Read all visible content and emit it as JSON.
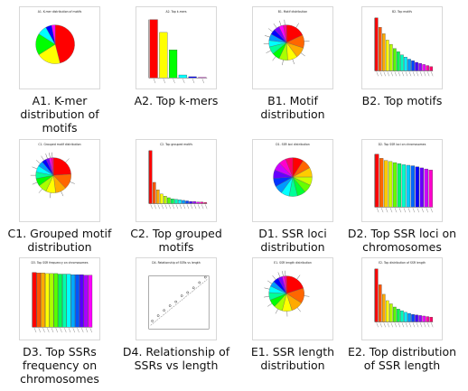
{
  "items": [
    {
      "label": "A1. K-mer distribution of motifs",
      "thumb_title": "A1. K-mer distribution of motifs",
      "kind": "pie_small",
      "colors": [
        "#ff0000",
        "#ffff00",
        "#00ff00",
        "#00ffff",
        "#0000ff",
        "#ff00ff"
      ],
      "values": [
        46,
        20,
        18,
        8,
        5,
        3
      ]
    },
    {
      "label": "A2. Top k-mers",
      "thumb_title": "A2. Top k-mers",
      "kind": "bar_decay",
      "colors": [
        "#ff0000",
        "#ffff00",
        "#00ff00",
        "#00ffff",
        "#0000ff",
        "#ff00ff"
      ],
      "values": [
        100,
        78,
        48,
        5,
        2,
        1
      ]
    },
    {
      "label": "B1. Motif distribution",
      "thumb_title": "B1. Motif distribution",
      "kind": "pie_many",
      "colors": [
        "#ff0000",
        "#ff6600",
        "#ffaa00",
        "#ffff00",
        "#aaff00",
        "#00ff00",
        "#00ff99",
        "#00ffff",
        "#0099ff",
        "#0000ff",
        "#7700ff",
        "#ff00ff",
        "#ff0099"
      ],
      "values": [
        18,
        12,
        10,
        9,
        8,
        7,
        7,
        6,
        6,
        5,
        5,
        4,
        3
      ]
    },
    {
      "label": "B2. Top motifs",
      "thumb_title": "B2. Top motifs",
      "kind": "bar_rainbow_decay",
      "colors": [
        "#ff0000",
        "#ff5500",
        "#ffaa00",
        "#ffff00",
        "#bbff00",
        "#55ff00",
        "#00ff55",
        "#00ffbb",
        "#00eeff",
        "#0099ff",
        "#0044ff",
        "#4400ff",
        "#9900ff",
        "#ee00ff",
        "#ff00aa",
        "#ff0066"
      ],
      "values": [
        100,
        82,
        70,
        58,
        50,
        42,
        36,
        30,
        26,
        22,
        19,
        16,
        14,
        12,
        10,
        8
      ]
    },
    {
      "label": "C1. Grouped motif distribution",
      "thumb_title": "C1. Grouped motif distribution",
      "kind": "pie_many",
      "colors": [
        "#ff0000",
        "#ff6600",
        "#ffaa00",
        "#ffff00",
        "#aaff00",
        "#00ff00",
        "#00ff99",
        "#00ffff",
        "#0099ff",
        "#0000ff",
        "#7700ff",
        "#ff00ff",
        "#ff0099"
      ],
      "values": [
        24,
        14,
        10,
        9,
        8,
        7,
        6,
        6,
        5,
        4,
        3,
        2,
        2
      ]
    },
    {
      "label": "C2. Top grouped motifs",
      "thumb_title": "C2. Top grouped motifs",
      "kind": "bar_rainbow_decay",
      "colors": [
        "#ff0000",
        "#ff5500",
        "#ffaa00",
        "#ffff00",
        "#bbff00",
        "#55ff00",
        "#00ff55",
        "#00ffbb",
        "#00eeff",
        "#0099ff",
        "#0044ff",
        "#4400ff",
        "#9900ff",
        "#ee00ff",
        "#ff00aa",
        "#ff0066"
      ],
      "values": [
        100,
        40,
        26,
        18,
        14,
        11,
        9,
        8,
        7,
        6,
        5,
        4,
        4,
        3,
        3,
        2
      ]
    },
    {
      "label": "D1. SSR loci distribution",
      "thumb_title": "D1. SSR loci distribution",
      "kind": "pie_rainbow",
      "colors": [
        "#ff0000",
        "#ff6600",
        "#ffcc00",
        "#ccff00",
        "#66ff00",
        "#00ff33",
        "#00ff99",
        "#00ffff",
        "#0099ff",
        "#0033ff",
        "#6600ff",
        "#cc00ff",
        "#ff00cc",
        "#ff0066"
      ],
      "values": [
        9,
        8,
        8,
        7,
        7,
        7,
        7,
        7,
        7,
        7,
        7,
        7,
        6,
        6
      ]
    },
    {
      "label": "D2. Top SSR loci on chromosomes",
      "thumb_title": "D2. Top SSR loci on chromosomes",
      "kind": "bar_rainbow_even",
      "colors": [
        "#ff0000",
        "#ff6600",
        "#ffcc00",
        "#ccff00",
        "#66ff00",
        "#00ff66",
        "#00ffcc",
        "#00ccff",
        "#0066ff",
        "#0000ff",
        "#6600ff",
        "#cc00ff",
        "#ff00cc"
      ],
      "values": [
        100,
        92,
        88,
        86,
        84,
        82,
        80,
        79,
        78,
        76,
        74,
        72,
        70
      ]
    },
    {
      "label": "D3. Top SSRs frequency on chromosomes",
      "thumb_title": "D3. Top SSR frequency on chromosomes",
      "kind": "bar_rainbow_full",
      "colors": [
        "#ff0000",
        "#ff5500",
        "#ffaa00",
        "#ffff00",
        "#aaff00",
        "#55ff00",
        "#00ff55",
        "#00ffaa",
        "#00ffff",
        "#00aaff",
        "#0055ff",
        "#5500ff",
        "#aa00ff",
        "#ff00ff"
      ],
      "values": [
        98,
        97,
        97,
        96,
        96,
        96,
        95,
        95,
        95,
        94,
        94,
        94,
        93,
        93
      ]
    },
    {
      "label": "D4. Relationship of SSRs vs length",
      "thumb_title": "D4. Relationship of SSRs vs length",
      "kind": "scatter",
      "colors": [
        "#333333",
        "#999999"
      ],
      "values": [
        12,
        20,
        28,
        35,
        41,
        50,
        55,
        62,
        70,
        78
      ]
    },
    {
      "label": "E1. SSR length distribution",
      "thumb_title": "E1. SSR length distribution",
      "kind": "pie_many",
      "colors": [
        "#ff0000",
        "#ff6600",
        "#ffaa00",
        "#ffff00",
        "#aaff00",
        "#00ff00",
        "#00ff99",
        "#00ffff",
        "#0099ff",
        "#0000ff",
        "#7700ff",
        "#ff00ff",
        "#ff0099"
      ],
      "values": [
        20,
        14,
        11,
        9,
        8,
        7,
        7,
        6,
        5,
        5,
        4,
        2,
        2
      ]
    },
    {
      "label": "E2. Top distribution of SSR length",
      "thumb_title": "E2. Top distribution of SSR length",
      "kind": "bar_rainbow_decay",
      "colors": [
        "#ff0000",
        "#ff5500",
        "#ffaa00",
        "#ffff00",
        "#bbff00",
        "#55ff00",
        "#00ff55",
        "#00ffbb",
        "#00eeff",
        "#0099ff",
        "#0044ff",
        "#4400ff",
        "#9900ff",
        "#ee00ff",
        "#ff00aa",
        "#ff0066"
      ],
      "values": [
        100,
        70,
        52,
        40,
        34,
        28,
        24,
        21,
        18,
        16,
        14,
        13,
        12,
        11,
        10,
        9
      ]
    }
  ]
}
